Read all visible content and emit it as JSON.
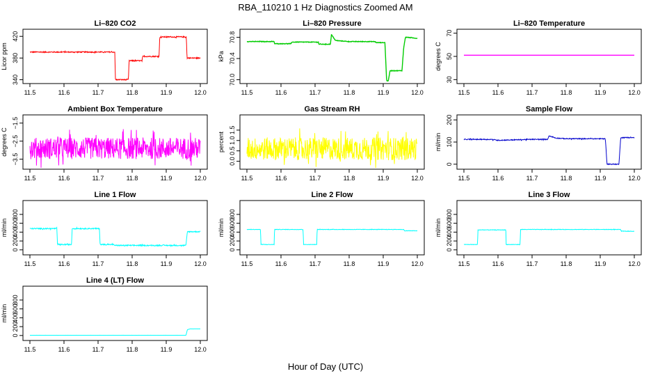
{
  "figure": {
    "title": "RBA_110210  1 Hz Diagnostics Zoomed AM",
    "xlabel": "Hour of Day (UTC)"
  },
  "chart_data": [
    {
      "type": "line",
      "title": "Li–820 CO2",
      "ylabel": "Licor ppm",
      "color": "#ff0000",
      "xlim": [
        11.5,
        12.0
      ],
      "ylim": [
        338,
        428
      ],
      "yticks": [
        "340",
        "380",
        "420"
      ],
      "xticks": [
        "11.5",
        "11.6",
        "11.7",
        "11.8",
        "11.9",
        "12.0"
      ],
      "series": [
        {
          "x": [
            11.5,
            11.749,
            11.751,
            11.789,
            11.791,
            11.829,
            11.831,
            11.879,
            11.881,
            11.959,
            11.961,
            12.0
          ],
          "y": [
            391,
            391,
            340,
            340,
            375,
            375,
            383,
            383,
            419,
            419,
            380,
            380
          ],
          "noise": 1
        }
      ]
    },
    {
      "type": "line",
      "title": "Li–820 Pressure",
      "ylabel": "kPa",
      "color": "#00cc00",
      "xlim": [
        11.5,
        12.0
      ],
      "ylim": [
        69.98,
        70.9
      ],
      "yticks": [
        "70.0",
        "70.4",
        "70.8"
      ],
      "xticks": [
        "11.5",
        "11.6",
        "11.7",
        "11.8",
        "11.9",
        "12.0"
      ],
      "series": [
        {
          "x": [
            11.5,
            11.58,
            11.581,
            11.63,
            11.631,
            11.71,
            11.711,
            11.745,
            11.748,
            11.76,
            11.8,
            11.875,
            11.88,
            11.905,
            11.91,
            11.915,
            11.92,
            11.955,
            11.96,
            11.965,
            11.97,
            12.0
          ],
          "y": [
            70.72,
            70.72,
            70.68,
            70.68,
            70.71,
            70.71,
            70.67,
            70.67,
            70.85,
            70.74,
            70.72,
            70.72,
            70.7,
            70.7,
            69.98,
            69.98,
            70.17,
            70.17,
            70.6,
            70.8,
            70.8,
            70.78
          ],
          "noise": 0.005
        }
      ]
    },
    {
      "type": "line",
      "title": "Li–820 Temperature",
      "ylabel": "degrees C",
      "color": "#ff00ff",
      "xlim": [
        11.5,
        12.0
      ],
      "ylim": [
        29,
        71
      ],
      "yticks": [
        "30",
        "50",
        "70"
      ],
      "xticks": [
        "11.5",
        "11.6",
        "11.7",
        "11.8",
        "11.9",
        "12.0"
      ],
      "series": [
        {
          "x": [
            11.5,
            12.0
          ],
          "y": [
            51,
            51
          ],
          "noise": 0
        }
      ]
    },
    {
      "type": "line",
      "title": "Ambient Box Temperature",
      "ylabel": "degrees C",
      "color": "#ff00ff",
      "xlim": [
        11.5,
        12.0
      ],
      "ylim": [
        -3.9,
        -1.2
      ],
      "yticks": [
        "−3.5",
        "−2.5",
        "−1.5"
      ],
      "xticks": [
        "11.5",
        "11.6",
        "11.7",
        "11.8",
        "11.9",
        "12.0"
      ],
      "series": [
        {
          "x": [
            11.5,
            12.0
          ],
          "y": [
            -2.9,
            -2.9
          ],
          "noise": 0.6
        }
      ]
    },
    {
      "type": "line",
      "title": "Gas Stream RH",
      "ylabel": "percent",
      "color": "#ffff00",
      "xlim": [
        11.5,
        12.0
      ],
      "ylim": [
        -0.25,
        2.1
      ],
      "yticks": [
        "0.0",
        "0.5",
        "1.0",
        "1.5"
      ],
      "xticks": [
        "11.5",
        "11.6",
        "11.7",
        "11.8",
        "11.9",
        "12.0"
      ],
      "series": [
        {
          "x": [
            11.5,
            12.0
          ],
          "y": [
            0.6,
            0.6
          ],
          "noise": 0.55
        }
      ]
    },
    {
      "type": "line",
      "title": "Sample Flow",
      "ylabel": "ml/min",
      "color": "#0000cc",
      "xlim": [
        11.5,
        12.0
      ],
      "ylim": [
        -10,
        210
      ],
      "yticks": [
        "0",
        "100",
        "200"
      ],
      "xticks": [
        "11.5",
        "11.6",
        "11.7",
        "11.8",
        "11.9",
        "12.0"
      ],
      "series": [
        {
          "x": [
            11.5,
            11.58,
            11.6,
            11.7,
            11.745,
            11.75,
            11.77,
            11.8,
            11.9,
            11.915,
            11.92,
            11.955,
            11.96,
            12.0
          ],
          "y": [
            112,
            112,
            108,
            112,
            112,
            128,
            118,
            115,
            115,
            115,
            0,
            0,
            120,
            120
          ],
          "noise": 2
        }
      ]
    },
    {
      "type": "line",
      "title": "Line 1 Flow",
      "ylabel": "ml/min",
      "color": "#00ffff",
      "xlim": [
        11.5,
        12.0
      ],
      "ylim": [
        -50,
        1050
      ],
      "yticks": [
        "0",
        "200",
        "400",
        "600",
        "800"
      ],
      "xticks": [
        "11.5",
        "11.6",
        "11.7",
        "11.8",
        "11.9",
        "12.0"
      ],
      "series": [
        {
          "x": [
            11.5,
            11.579,
            11.581,
            11.622,
            11.624,
            11.704,
            11.706,
            11.745,
            11.75,
            11.958,
            11.962,
            12.0
          ],
          "y": [
            480,
            480,
            120,
            120,
            480,
            480,
            120,
            120,
            100,
            100,
            410,
            410
          ],
          "noise": 12
        }
      ]
    },
    {
      "type": "line",
      "title": "Line 2 Flow",
      "ylabel": "ml/min",
      "color": "#00ffff",
      "xlim": [
        11.5,
        12.0
      ],
      "ylim": [
        -50,
        1050
      ],
      "yticks": [
        "0",
        "200",
        "400",
        "600",
        "800"
      ],
      "xticks": [
        "11.5",
        "11.6",
        "11.7",
        "11.8",
        "11.9",
        "12.0"
      ],
      "series": [
        {
          "x": [
            11.5,
            11.54,
            11.541,
            11.58,
            11.581,
            11.665,
            11.666,
            11.705,
            11.706,
            11.96,
            11.962,
            12.0
          ],
          "y": [
            460,
            460,
            120,
            120,
            460,
            460,
            120,
            120,
            460,
            460,
            430,
            430
          ],
          "noise": 5
        }
      ]
    },
    {
      "type": "line",
      "title": "Line 3 Flow",
      "ylabel": "ml/min",
      "color": "#00ffff",
      "xlim": [
        11.5,
        12.0
      ],
      "ylim": [
        -50,
        1050
      ],
      "yticks": [
        "0",
        "200",
        "400",
        "600",
        "800"
      ],
      "xticks": [
        "11.5",
        "11.6",
        "11.7",
        "11.8",
        "11.9",
        "12.0"
      ],
      "series": [
        {
          "x": [
            11.5,
            11.54,
            11.541,
            11.623,
            11.624,
            11.665,
            11.666,
            11.96,
            11.962,
            12.0
          ],
          "y": [
            120,
            120,
            450,
            450,
            120,
            120,
            460,
            460,
            420,
            420
          ],
          "noise": 5
        }
      ]
    },
    {
      "type": "line",
      "title": "Line 4 (LT) Flow",
      "ylabel": "ml/min",
      "color": "#00ffff",
      "xlim": [
        11.5,
        12.0
      ],
      "ylim": [
        -50,
        1050
      ],
      "yticks": [
        "0",
        "200",
        "400",
        "600",
        "800"
      ],
      "xticks": [
        "11.5",
        "11.6",
        "11.7",
        "11.8",
        "11.9",
        "12.0"
      ],
      "series": [
        {
          "x": [
            11.5,
            11.958,
            11.962,
            11.97,
            12.0
          ],
          "y": [
            5,
            5,
            130,
            150,
            150
          ],
          "noise": 1
        }
      ]
    }
  ]
}
